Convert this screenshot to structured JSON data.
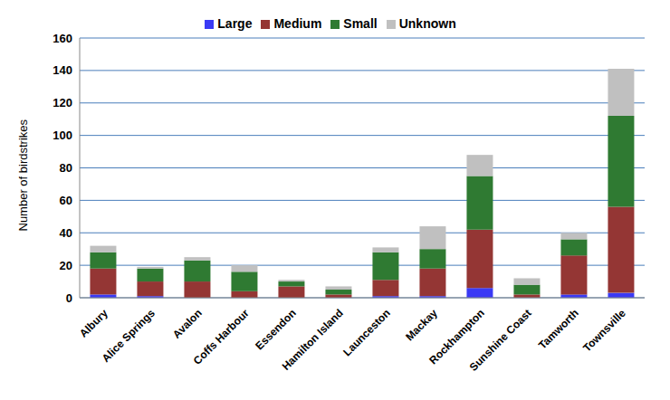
{
  "chart_data": {
    "type": "bar",
    "stacked": true,
    "grid": true,
    "legend": "top",
    "y_label": "Number of birdstrikes",
    "categories": [
      "Albury",
      "Alice Springs",
      "Avalon",
      "Coffs Harbour",
      "Essendon",
      "Hamilton Island",
      "Launceston",
      "Mackay",
      "Rockhampton",
      "Sunshine Coast",
      "Tamworth",
      "Townsville"
    ],
    "series": [
      {
        "name": "Large",
        "color": "#3a3af5",
        "values": [
          2,
          1,
          0,
          0,
          0,
          0,
          1,
          1,
          6,
          0,
          2,
          3
        ]
      },
      {
        "name": "Medium",
        "color": "#943634",
        "values": [
          16,
          9,
          10,
          4,
          7,
          2,
          10,
          17,
          36,
          2,
          24,
          53
        ]
      },
      {
        "name": "Small",
        "color": "#2f7a32",
        "values": [
          10,
          8,
          13,
          12,
          3,
          3,
          17,
          12,
          33,
          6,
          10,
          56
        ]
      },
      {
        "name": "Unknown",
        "color": "#c0c0c0",
        "values": [
          4,
          1,
          2,
          4,
          1,
          2,
          3,
          14,
          13,
          4,
          4,
          29
        ]
      }
    ],
    "ylim": [
      0,
      160
    ],
    "yticks": [
      0,
      20,
      40,
      60,
      80,
      100,
      120,
      140,
      160
    ]
  }
}
